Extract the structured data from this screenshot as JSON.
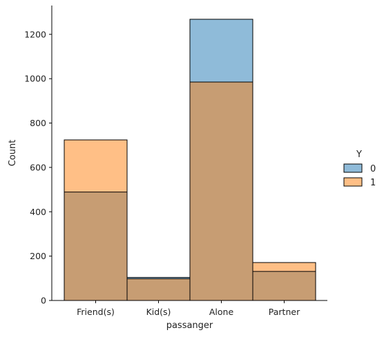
{
  "chart_data": {
    "type": "bar",
    "title": "",
    "xlabel": "passanger",
    "ylabel": "Count",
    "categories": [
      "Friend(s)",
      "Kid(s)",
      "Alone",
      "Partner"
    ],
    "ylim": [
      0,
      1330
    ],
    "yticks": [
      0,
      200,
      400,
      600,
      800,
      1000,
      1200
    ],
    "grid": false,
    "overlay": "layered",
    "series": [
      {
        "name": "0",
        "values": [
          489,
          104,
          1268,
          131
        ],
        "color": "#1f77b4"
      },
      {
        "name": "1",
        "values": [
          724,
          98,
          985,
          171
        ],
        "color": "#ff7f0e"
      }
    ],
    "legend": {
      "title": "Y",
      "placement": "right",
      "entries": [
        "0",
        "1"
      ]
    }
  }
}
